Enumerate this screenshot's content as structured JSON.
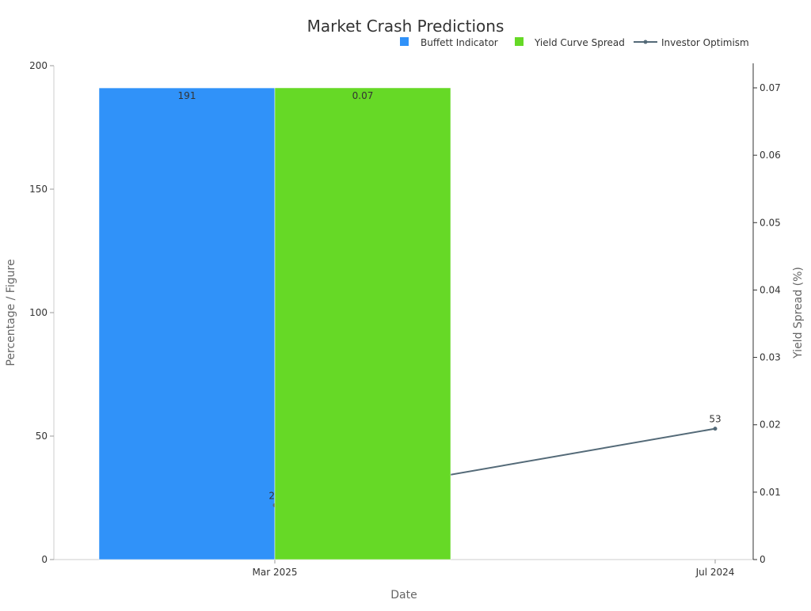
{
  "chart_data": {
    "type": "bar+line",
    "title": "Market Crash Predictions",
    "xlabel": "Date",
    "ylabel": "Percentage / Figure",
    "y2label": "Yield Spread (%)",
    "categories": [
      "Mar 2025",
      "Jul 2024"
    ],
    "ylim": [
      0,
      200
    ],
    "yticks": [
      0,
      50,
      100,
      150,
      200
    ],
    "y2lim": [
      0,
      0.074
    ],
    "y2ticks": [
      "0",
      "0.01",
      "0.02",
      "0.03",
      "0.04",
      "0.05",
      "0.06",
      "0.07"
    ],
    "grid": false,
    "legend_position": "top-right",
    "series": [
      {
        "name": "Buffett Indicator",
        "type": "bar",
        "axis": "left",
        "color": "#3092f9",
        "values": [
          191,
          null
        ],
        "labels": [
          "191",
          ""
        ]
      },
      {
        "name": "Yield Curve Spread",
        "type": "bar",
        "axis": "right",
        "color": "#66d926",
        "values": [
          0.07,
          null
        ],
        "labels": [
          "0.07",
          ""
        ]
      },
      {
        "name": "Investor Optimism",
        "type": "line",
        "axis": "left",
        "color": "#546a78",
        "values": [
          22,
          53
        ],
        "labels": [
          "22",
          "53"
        ]
      }
    ]
  }
}
